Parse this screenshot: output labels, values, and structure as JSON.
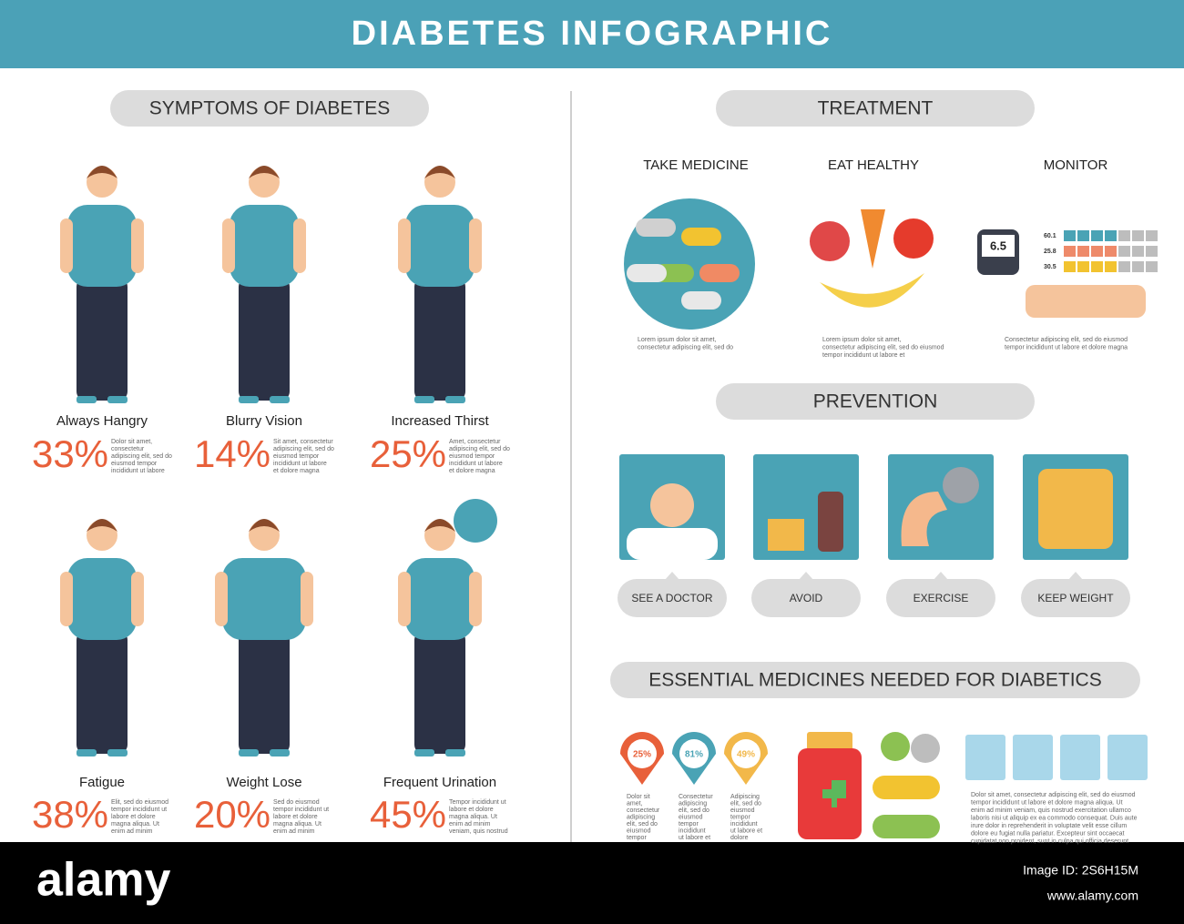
{
  "header": {
    "title": "DIABETES INFOGRAPHIC"
  },
  "symptoms": {
    "title": "SYMPTOMS OF DIABETES",
    "items": [
      {
        "label": "Always Hangry",
        "percent": "33%",
        "text": [
          "Dolor sit amet,",
          "consectetur",
          "adipiscing elit, sed do",
          "eiusmod tempor",
          "incididunt ut labore"
        ]
      },
      {
        "label": "Blurry Vision",
        "percent": "14%",
        "text": [
          "Sit amet, consectetur",
          "adipiscing elit, sed do",
          "eiusmod tempor",
          "incididunt ut labore",
          "et dolore magna"
        ]
      },
      {
        "label": "Increased Thirst",
        "percent": "25%",
        "text": [
          "Amet, consectetur",
          "adipiscing elit, sed do",
          "eiusmod tempor",
          "incididunt ut labore",
          "et dolore magna"
        ]
      },
      {
        "label": "Fatigue",
        "percent": "38%",
        "text": [
          "Elit, sed do eiusmod",
          "tempor incididunt ut",
          "labore et dolore",
          "magna aliqua. Ut",
          "enim ad minim"
        ]
      },
      {
        "label": "Weight Lose",
        "percent": "20%",
        "text": [
          "Sed do eiusmod",
          "tempor incididunt ut",
          "labore et dolore",
          "magna aliqua. Ut",
          "enim ad minim"
        ]
      },
      {
        "label": "Frequent Urination",
        "percent": "45%",
        "text": [
          "Tempor incididunt ut",
          "labore et dolore",
          "magna aliqua. Ut",
          "enim ad minim",
          "veniam, quis nostrud"
        ]
      }
    ]
  },
  "treatment": {
    "title": "TREATMENT",
    "items": [
      {
        "label": "TAKE MEDICINE",
        "text": [
          "Lorem ipsum dolor sit amet,",
          "consectetur adipiscing elit, sed do"
        ]
      },
      {
        "label": "EAT HEALTHY",
        "text": [
          "Lorem ipsum dolor sit amet,",
          "consectetur adipiscing elit, sed do eiusmod",
          "tempor incididunt ut labore et"
        ]
      },
      {
        "label": "MONITOR",
        "text": [
          "Consectetur adipiscing elit, sed do eiusmod",
          "tempor incididunt ut labore et dolore magna"
        ]
      }
    ],
    "monitor": {
      "reading": "6.5",
      "levels": [
        "60.1",
        "25.8",
        "30.5"
      ]
    }
  },
  "prevention": {
    "title": "PREVENTION",
    "items": [
      "SEE A DOCTOR",
      "AVOID",
      "EXERCISE",
      "KEEP WEIGHT"
    ]
  },
  "medicines": {
    "title": "ESSENTIAL MEDICINES NEEDED FOR DIABETICS",
    "pins": [
      {
        "value": "25%",
        "text": [
          "Dolor sit",
          "amet,",
          "consectetur",
          "adipiscing",
          "elit, sed do",
          "eiusmod",
          "tempor"
        ]
      },
      {
        "value": "81%",
        "text": [
          "Consectetur",
          "adipiscing",
          "elit, sed do",
          "eiusmod",
          "tempor",
          "incididunt",
          "ut labore et"
        ]
      },
      {
        "value": "49%",
        "text": [
          "Adipiscing",
          "elit, sed do",
          "eiusmod",
          "tempor",
          "incididunt",
          "ut labore et",
          "dolore"
        ]
      }
    ],
    "text": [
      "Dolor sit amet, consectetur adipiscing elit, sed do eiusmod",
      "tempor incididunt ut labore et dolore magna aliqua. Ut",
      "enim ad minim veniam, quis nostrud exercitation ullamco",
      "laboris nisi ut aliquip ex ea commodo consequat. Duis aute",
      "irure dolor in reprehenderit in voluptate velit esse cillum",
      "dolore eu fugiat nulla pariatur. Excepteur sint occaecat",
      "cupidatat non proident, sunt in culpa qui officia deserunt"
    ]
  },
  "footer": {
    "brand": "alamy",
    "image_id": "Image ID: 2S6H15M",
    "url": "www.alamy.com"
  }
}
